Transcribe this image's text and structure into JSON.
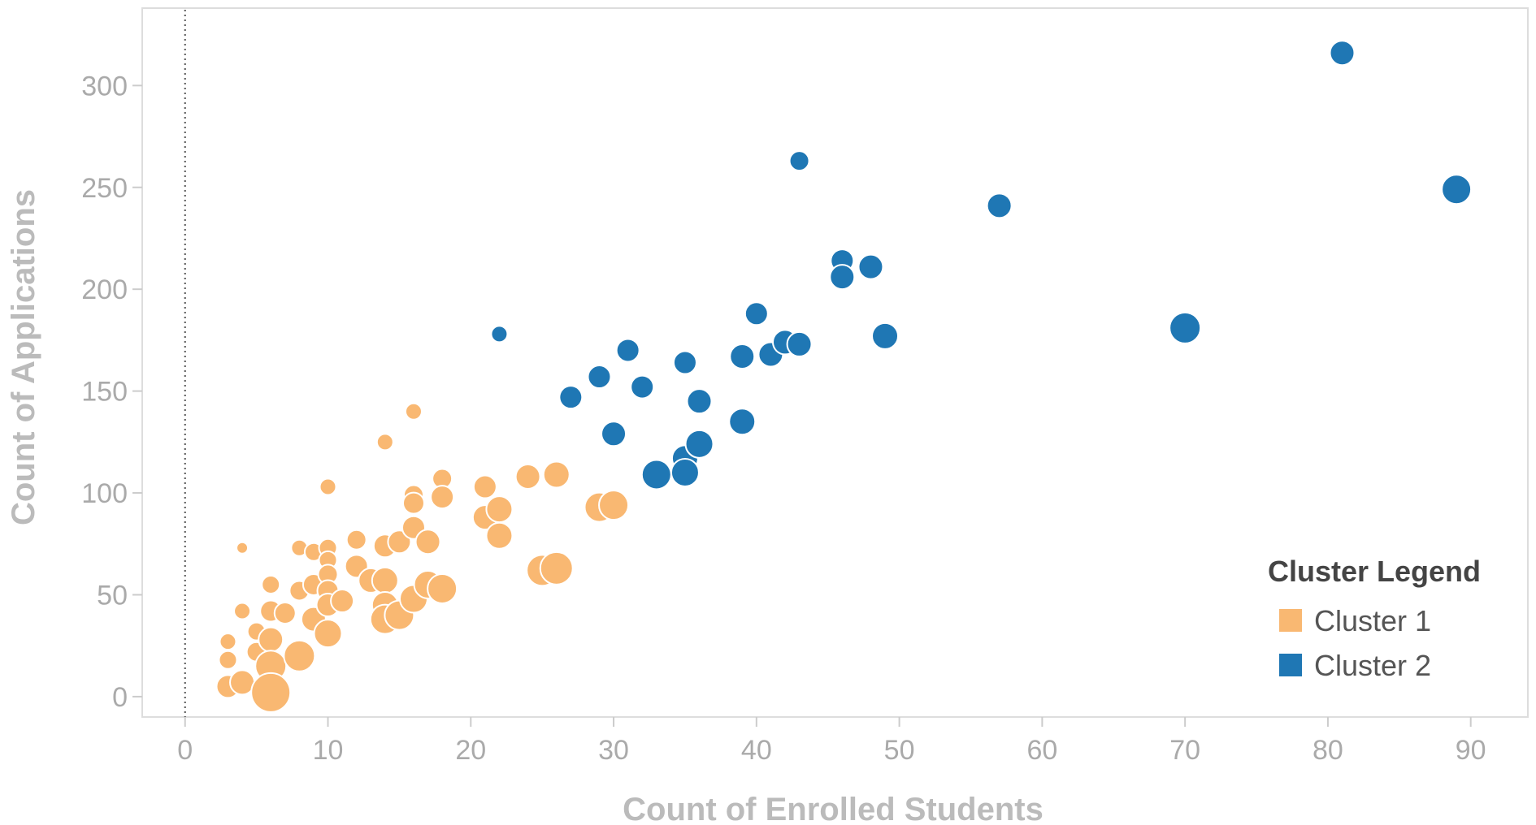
{
  "chart_data": {
    "type": "scatter",
    "xlabel": "Count of Enrolled Students",
    "ylabel": "Count of Applications",
    "xlim": [
      -3,
      94
    ],
    "ylim": [
      -10,
      338
    ],
    "x_ticks": [
      0,
      10,
      20,
      30,
      40,
      50,
      60,
      70,
      80,
      90
    ],
    "y_ticks": [
      0,
      50,
      100,
      150,
      200,
      250,
      300
    ],
    "grid": false,
    "zero_line_x": true,
    "legend": {
      "title": "Cluster Legend",
      "placement": "bottom-right",
      "entries": [
        {
          "label": "Cluster 1",
          "color": "#f9b872"
        },
        {
          "label": "Cluster 2",
          "color": "#1f77b4"
        }
      ]
    },
    "series": [
      {
        "name": "Cluster 1",
        "color": "#f9b872",
        "points": [
          {
            "x": 4,
            "y": 73,
            "size": 7
          },
          {
            "x": 4,
            "y": 42,
            "size": 10
          },
          {
            "x": 3,
            "y": 27,
            "size": 10
          },
          {
            "x": 3,
            "y": 18,
            "size": 11
          },
          {
            "x": 3,
            "y": 5,
            "size": 14
          },
          {
            "x": 5,
            "y": 32,
            "size": 11
          },
          {
            "x": 5,
            "y": 22,
            "size": 12
          },
          {
            "x": 4,
            "y": 7,
            "size": 15
          },
          {
            "x": 6,
            "y": 55,
            "size": 11
          },
          {
            "x": 6,
            "y": 42,
            "size": 13
          },
          {
            "x": 6,
            "y": 28,
            "size": 15
          },
          {
            "x": 6,
            "y": 15,
            "size": 19
          },
          {
            "x": 6,
            "y": 2,
            "size": 24
          },
          {
            "x": 7,
            "y": 41,
            "size": 13
          },
          {
            "x": 8,
            "y": 73,
            "size": 10
          },
          {
            "x": 8,
            "y": 52,
            "size": 12
          },
          {
            "x": 8,
            "y": 20,
            "size": 19
          },
          {
            "x": 9,
            "y": 71,
            "size": 11
          },
          {
            "x": 9,
            "y": 55,
            "size": 13
          },
          {
            "x": 9,
            "y": 38,
            "size": 15
          },
          {
            "x": 10,
            "y": 103,
            "size": 10
          },
          {
            "x": 10,
            "y": 73,
            "size": 11
          },
          {
            "x": 10,
            "y": 67,
            "size": 11
          },
          {
            "x": 10,
            "y": 60,
            "size": 12
          },
          {
            "x": 10,
            "y": 52,
            "size": 13
          },
          {
            "x": 10,
            "y": 45,
            "size": 14
          },
          {
            "x": 10,
            "y": 31,
            "size": 17
          },
          {
            "x": 11,
            "y": 47,
            "size": 14
          },
          {
            "x": 12,
            "y": 77,
            "size": 12
          },
          {
            "x": 12,
            "y": 64,
            "size": 14
          },
          {
            "x": 13,
            "y": 57,
            "size": 15
          },
          {
            "x": 14,
            "y": 125,
            "size": 10
          },
          {
            "x": 14,
            "y": 74,
            "size": 14
          },
          {
            "x": 14,
            "y": 57,
            "size": 16
          },
          {
            "x": 14,
            "y": 45,
            "size": 16
          },
          {
            "x": 14,
            "y": 38,
            "size": 18
          },
          {
            "x": 15,
            "y": 76,
            "size": 14
          },
          {
            "x": 15,
            "y": 40,
            "size": 18
          },
          {
            "x": 16,
            "y": 140,
            "size": 10
          },
          {
            "x": 16,
            "y": 99,
            "size": 12
          },
          {
            "x": 16,
            "y": 95,
            "size": 13
          },
          {
            "x": 16,
            "y": 83,
            "size": 14
          },
          {
            "x": 16,
            "y": 48,
            "size": 17
          },
          {
            "x": 17,
            "y": 76,
            "size": 15
          },
          {
            "x": 17,
            "y": 55,
            "size": 17
          },
          {
            "x": 18,
            "y": 107,
            "size": 12
          },
          {
            "x": 18,
            "y": 98,
            "size": 14
          },
          {
            "x": 18,
            "y": 53,
            "size": 18
          },
          {
            "x": 21,
            "y": 103,
            "size": 14
          },
          {
            "x": 21,
            "y": 88,
            "size": 15
          },
          {
            "x": 22,
            "y": 92,
            "size": 16
          },
          {
            "x": 22,
            "y": 79,
            "size": 16
          },
          {
            "x": 24,
            "y": 108,
            "size": 15
          },
          {
            "x": 25,
            "y": 62,
            "size": 19
          },
          {
            "x": 26,
            "y": 109,
            "size": 16
          },
          {
            "x": 26,
            "y": 63,
            "size": 20
          },
          {
            "x": 29,
            "y": 93,
            "size": 18
          },
          {
            "x": 30,
            "y": 94,
            "size": 18
          }
        ]
      },
      {
        "name": "Cluster 2",
        "color": "#1f77b4",
        "points": [
          {
            "x": 22,
            "y": 178,
            "size": 10
          },
          {
            "x": 27,
            "y": 147,
            "size": 14
          },
          {
            "x": 29,
            "y": 157,
            "size": 14
          },
          {
            "x": 30,
            "y": 129,
            "size": 15
          },
          {
            "x": 31,
            "y": 170,
            "size": 14
          },
          {
            "x": 32,
            "y": 152,
            "size": 14
          },
          {
            "x": 33,
            "y": 109,
            "size": 18
          },
          {
            "x": 35,
            "y": 164,
            "size": 14
          },
          {
            "x": 35,
            "y": 117,
            "size": 16
          },
          {
            "x": 35,
            "y": 110,
            "size": 17
          },
          {
            "x": 36,
            "y": 145,
            "size": 15
          },
          {
            "x": 36,
            "y": 124,
            "size": 17
          },
          {
            "x": 39,
            "y": 135,
            "size": 16
          },
          {
            "x": 39,
            "y": 167,
            "size": 15
          },
          {
            "x": 40,
            "y": 188,
            "size": 14
          },
          {
            "x": 41,
            "y": 168,
            "size": 15
          },
          {
            "x": 42,
            "y": 174,
            "size": 15
          },
          {
            "x": 43,
            "y": 263,
            "size": 12
          },
          {
            "x": 43,
            "y": 173,
            "size": 15
          },
          {
            "x": 46,
            "y": 214,
            "size": 14
          },
          {
            "x": 46,
            "y": 206,
            "size": 15
          },
          {
            "x": 48,
            "y": 211,
            "size": 15
          },
          {
            "x": 49,
            "y": 177,
            "size": 16
          },
          {
            "x": 57,
            "y": 241,
            "size": 15
          },
          {
            "x": 70,
            "y": 181,
            "size": 19
          },
          {
            "x": 81,
            "y": 316,
            "size": 15
          },
          {
            "x": 89,
            "y": 249,
            "size": 18
          }
        ]
      }
    ]
  }
}
